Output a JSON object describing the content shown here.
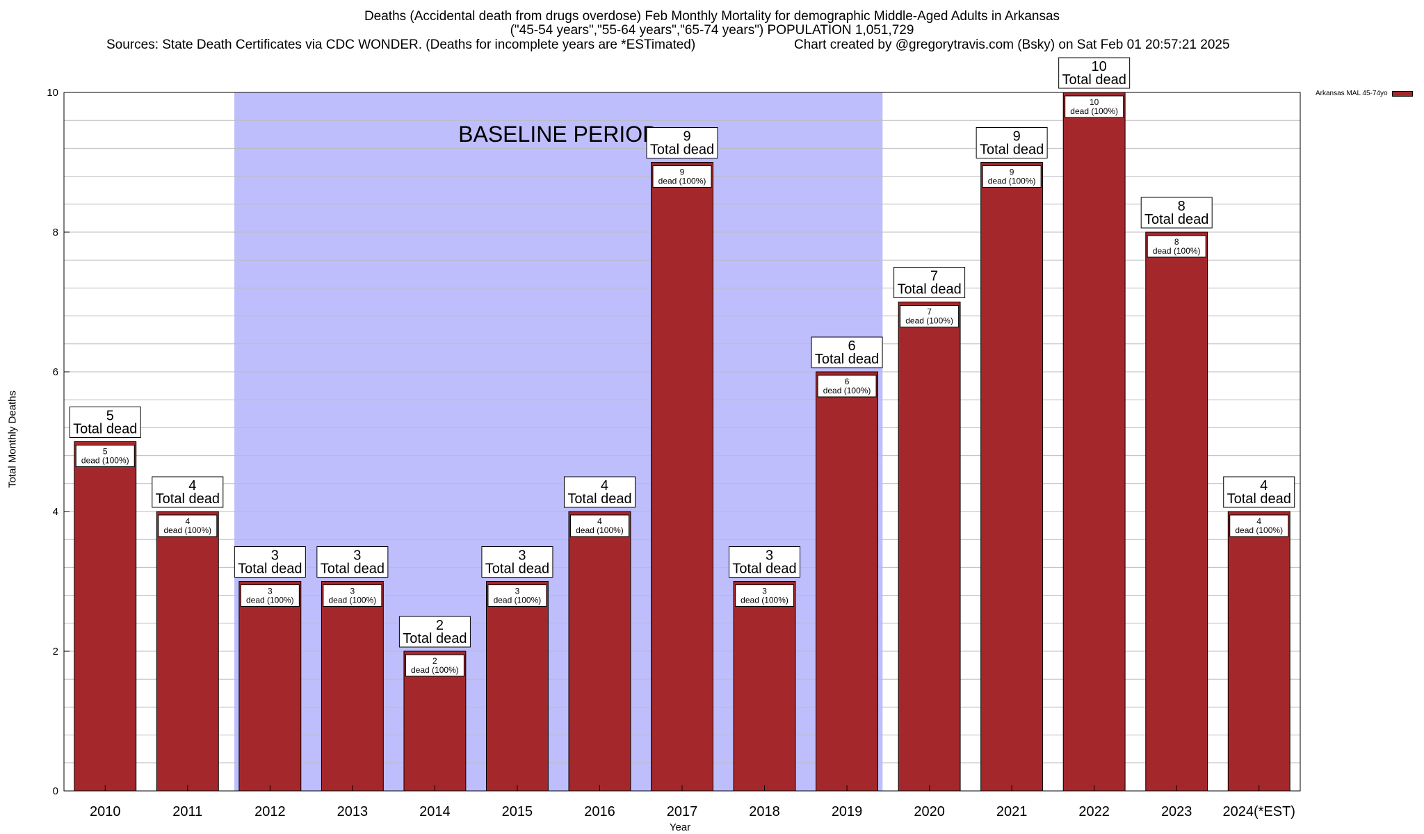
{
  "chart_data": {
    "type": "bar",
    "title": "Deaths (Accidental death from drugs overdose) Feb Monthly Mortality for demographic Middle-Aged Adults in Arkansas",
    "subtitle": "(\"45-54 years\",\"55-64 years\",\"65-74 years\") POPULATION 1,051,729",
    "source": "Sources: State Death Certificates via CDC WONDER. (Deaths for incomplete years are *ESTimated)",
    "credit": "Chart created by @gregorytravis.com (Bsky) on Sat Feb 01 20:57:21 2025",
    "xlabel": "Year",
    "ylabel": "Total Monthly Deaths",
    "ylim": [
      0,
      10
    ],
    "yticks": [
      0,
      2,
      4,
      6,
      8,
      10
    ],
    "categories": [
      "2010",
      "2011",
      "2012",
      "2013",
      "2014",
      "2015",
      "2016",
      "2017",
      "2018",
      "2019",
      "2020",
      "2021",
      "2022",
      "2023",
      "2024(*EST)"
    ],
    "series": [
      {
        "name": "Arkansas MAL 45-74yo",
        "values": [
          5,
          4,
          3,
          3,
          2,
          3,
          4,
          9,
          3,
          6,
          7,
          9,
          10,
          8,
          4
        ]
      }
    ],
    "total_label": "Total dead",
    "inner_label_suffix": "dead (100%)",
    "baseline": {
      "label": "BASELINE PERIOD",
      "start": "2012",
      "end": "2019"
    },
    "colors": {
      "bar": "#a4282b",
      "baseline": "#bebefc",
      "grid": "#bbbbbb"
    }
  }
}
